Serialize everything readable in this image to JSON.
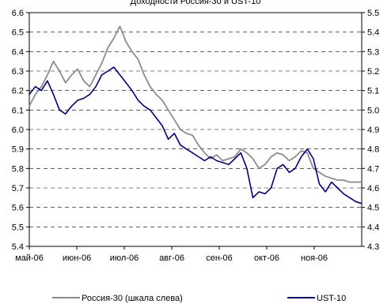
{
  "chart_data": {
    "type": "line",
    "title": "Доходности Россия-30 и UST-10",
    "x_tick_labels": [
      "май-06",
      "июн-06",
      "июл-06",
      "авг-06",
      "сен-06",
      "окт-06",
      "ноя-06"
    ],
    "y_left": {
      "ylim": [
        5.4,
        6.6
      ],
      "ticks": [
        "5.4",
        "5.5",
        "5.6",
        "5.7",
        "5.8",
        "5.9",
        "6.0",
        "6.1",
        "6.2",
        "6.3",
        "6.4",
        "6.5",
        "6.6"
      ]
    },
    "y_right": {
      "ylim": [
        4.3,
        5.5
      ],
      "ticks": [
        "4.3",
        "4.4",
        "4.5",
        "4.6",
        "4.7",
        "4.8",
        "4.9",
        "5.0",
        "5.1",
        "5.2",
        "5.3",
        "5.4",
        "5.5"
      ]
    },
    "x_range": [
      0,
      220
    ],
    "grid": "horizontal-dashed",
    "legend_position": "bottom",
    "series": [
      {
        "name": "Россия-30 (шкала слева)",
        "axis": "left",
        "color": "#8c8c8c",
        "x": [
          0,
          4,
          8,
          12,
          16,
          20,
          24,
          28,
          32,
          36,
          40,
          44,
          48,
          52,
          56,
          60,
          64,
          68,
          72,
          76,
          80,
          84,
          88,
          92,
          96,
          100,
          104,
          108,
          112,
          116,
          120,
          124,
          128,
          132,
          136,
          140,
          144,
          148,
          152,
          156,
          160,
          164,
          168,
          172,
          176,
          180,
          184,
          188,
          192,
          196,
          200,
          204,
          208,
          212,
          216,
          220
        ],
        "values": [
          6.12,
          6.18,
          6.22,
          6.28,
          6.35,
          6.3,
          6.24,
          6.28,
          6.31,
          6.25,
          6.22,
          6.28,
          6.34,
          6.42,
          6.47,
          6.53,
          6.45,
          6.4,
          6.36,
          6.28,
          6.22,
          6.18,
          6.15,
          6.1,
          6.05,
          6.0,
          5.98,
          5.97,
          5.92,
          5.88,
          5.85,
          5.87,
          5.84,
          5.85,
          5.86,
          5.9,
          5.88,
          5.85,
          5.8,
          5.82,
          5.86,
          5.88,
          5.87,
          5.84,
          5.86,
          5.89,
          5.88,
          5.8,
          5.78,
          5.76,
          5.75,
          5.74,
          5.74,
          5.73,
          5.73,
          5.73
        ]
      },
      {
        "name": "UST-10",
        "axis": "right",
        "color": "#000080",
        "x": [
          0,
          4,
          8,
          12,
          16,
          20,
          24,
          28,
          32,
          36,
          40,
          44,
          48,
          52,
          56,
          60,
          64,
          68,
          72,
          76,
          80,
          84,
          88,
          92,
          96,
          100,
          104,
          108,
          112,
          116,
          120,
          124,
          128,
          132,
          136,
          140,
          144,
          148,
          152,
          156,
          160,
          164,
          168,
          172,
          176,
          180,
          184,
          188,
          192,
          196,
          200,
          204,
          208,
          212,
          216,
          220
        ],
        "values": [
          5.08,
          5.12,
          5.1,
          5.15,
          5.08,
          5.0,
          4.98,
          5.02,
          5.05,
          5.06,
          5.08,
          5.12,
          5.18,
          5.2,
          5.22,
          5.18,
          5.14,
          5.1,
          5.05,
          5.02,
          5.0,
          4.96,
          4.92,
          4.85,
          4.88,
          4.82,
          4.8,
          4.78,
          4.76,
          4.74,
          4.76,
          4.74,
          4.73,
          4.72,
          4.75,
          4.78,
          4.7,
          4.55,
          4.58,
          4.57,
          4.6,
          4.7,
          4.72,
          4.68,
          4.7,
          4.76,
          4.8,
          4.75,
          4.62,
          4.58,
          4.63,
          4.6,
          4.57,
          4.55,
          4.53,
          4.52
        ]
      }
    ]
  }
}
